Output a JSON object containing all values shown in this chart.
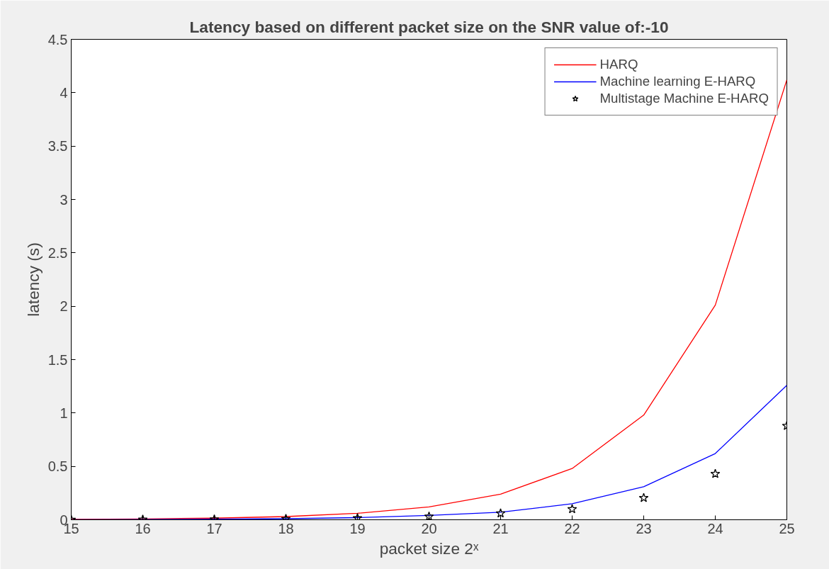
{
  "chart_data": {
    "type": "line",
    "title": "Latency based on different packet size on the SNR value of:-10",
    "xlabel": "packet size 2ˣ",
    "ylabel": "latency (s)",
    "x": [
      15,
      16,
      17,
      18,
      19,
      20,
      21,
      22,
      23,
      24,
      25
    ],
    "series": [
      {
        "name": "HARQ",
        "color": "#ff0000",
        "values": [
          0.004,
          0.008,
          0.015,
          0.03,
          0.06,
          0.12,
          0.24,
          0.48,
          0.98,
          2.01,
          4.12
        ]
      },
      {
        "name": "Machine learning E-HARQ",
        "color": "#0000ff",
        "values": [
          0.001,
          0.002,
          0.005,
          0.01,
          0.02,
          0.04,
          0.07,
          0.15,
          0.31,
          0.62,
          1.26
        ]
      },
      {
        "name": "Multistage Machine E-HARQ",
        "color": "#000000",
        "type": "scatter",
        "marker": "star",
        "values": [
          0.001,
          0.002,
          0.004,
          0.008,
          0.015,
          0.03,
          0.06,
          0.1,
          0.205,
          0.43,
          0.88
        ]
      }
    ],
    "xlim": [
      15,
      25
    ],
    "ylim": [
      0,
      4.5
    ],
    "xticks": [
      15,
      16,
      17,
      18,
      19,
      20,
      21,
      22,
      23,
      24,
      25
    ],
    "yticks": [
      0,
      0.5,
      1,
      1.5,
      2,
      2.5,
      3,
      3.5,
      4,
      4.5
    ],
    "grid": false,
    "legend": "top right",
    "line_style": "solid"
  }
}
